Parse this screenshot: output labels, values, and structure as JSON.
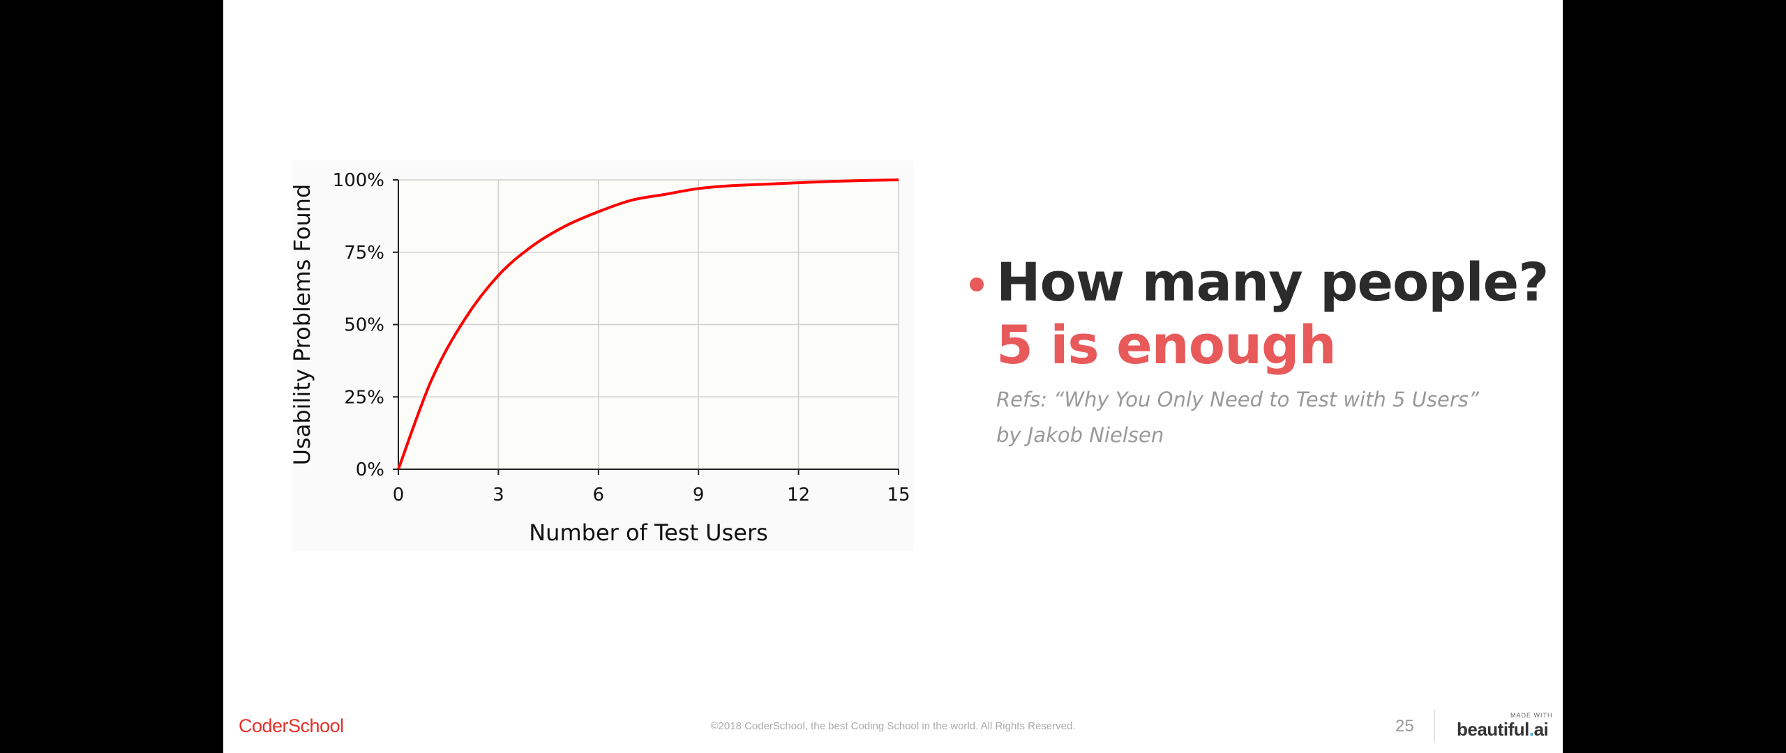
{
  "slide": {
    "headline": "How many people?",
    "subheadline": "5 is enough",
    "refs": [
      "Refs: “Why You Only Need to Test with 5 Users”",
      "by Jakob Nielsen"
    ],
    "accent_color": "#e85a5a",
    "headline_color": "#2b2b2b",
    "bullet_icon": "bullet-dot-icon"
  },
  "footer": {
    "brand": "CoderSchool",
    "brand_color": "#e8302a",
    "copyright": "©2018 CoderSchool, the best Coding School in the world. All Rights Reserved.",
    "page_number": "25",
    "made_with_label": "MADE WITH",
    "logo_text": "beautiful",
    "logo_dot": ".",
    "logo_suffix": "ai"
  },
  "chart_data": {
    "type": "line",
    "title": "",
    "xlabel": "Number of Test Users",
    "ylabel": "Usability Problems Found",
    "x_ticks": [
      "0",
      "3",
      "6",
      "9",
      "12",
      "15"
    ],
    "y_ticks": [
      "0%",
      "25%",
      "50%",
      "75%",
      "100%"
    ],
    "xlim": [
      0,
      15
    ],
    "ylim": [
      0,
      100
    ],
    "grid": true,
    "legend": "none",
    "series": [
      {
        "color": "#ff0000",
        "x": [
          0,
          1,
          2,
          3,
          4,
          5,
          6,
          7,
          8,
          9,
          10,
          11,
          12,
          13,
          14,
          15
        ],
        "y": [
          0,
          31,
          52,
          67,
          77,
          84,
          89,
          93,
          95,
          97,
          98,
          98.5,
          99,
          99.5,
          99.8,
          100
        ]
      }
    ]
  }
}
